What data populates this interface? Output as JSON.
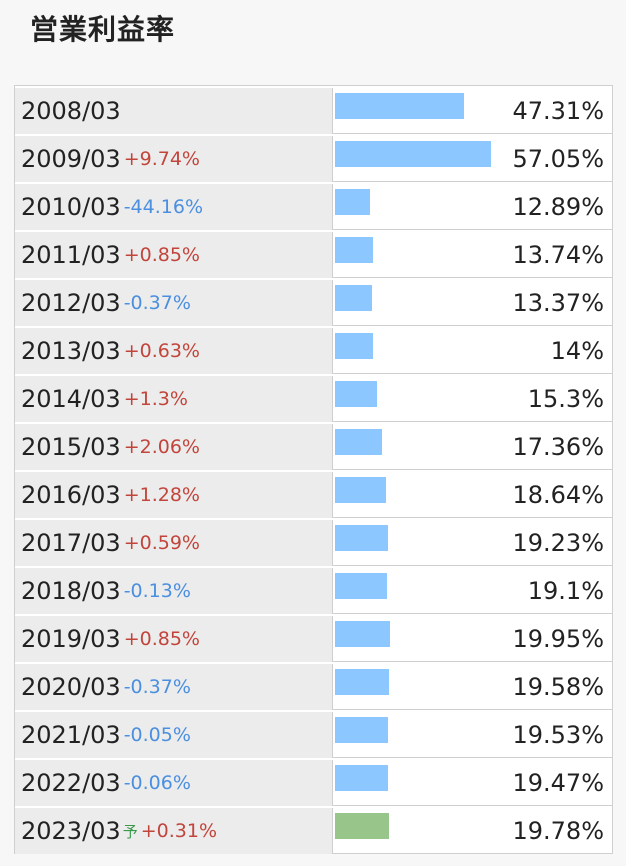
{
  "title": "営業利益率",
  "forecast_mark": "予",
  "colors": {
    "bar": "#8cc8ff",
    "forecast_bar": "#98c68a",
    "up": "#c2453c",
    "down": "#4a8fe0"
  },
  "chart_data": {
    "type": "bar",
    "title": "営業利益率",
    "categories": [
      "2008/03",
      "2009/03",
      "2010/03",
      "2011/03",
      "2012/03",
      "2013/03",
      "2014/03",
      "2015/03",
      "2016/03",
      "2017/03",
      "2018/03",
      "2019/03",
      "2020/03",
      "2021/03",
      "2022/03",
      "2023/03"
    ],
    "values": [
      47.31,
      57.05,
      12.89,
      13.74,
      13.37,
      14,
      15.3,
      17.36,
      18.64,
      19.23,
      19.1,
      19.95,
      19.58,
      19.53,
      19.47,
      19.78
    ],
    "value_labels": [
      "47.31%",
      "57.05%",
      "12.89%",
      "13.74%",
      "13.37%",
      "14%",
      "15.3%",
      "17.36%",
      "18.64%",
      "19.23%",
      "19.1%",
      "19.95%",
      "19.58%",
      "19.53%",
      "19.47%",
      "19.78%"
    ],
    "changes": [
      "",
      "+9.74%",
      "-44.16%",
      "+0.85%",
      "-0.37%",
      "+0.63%",
      "+1.3%",
      "+2.06%",
      "+1.28%",
      "+0.59%",
      "-0.13%",
      "+0.85%",
      "-0.37%",
      "-0.05%",
      "-0.06%",
      "+0.31%"
    ],
    "forecast_index": 15,
    "xlim": [
      0,
      57.05
    ]
  }
}
